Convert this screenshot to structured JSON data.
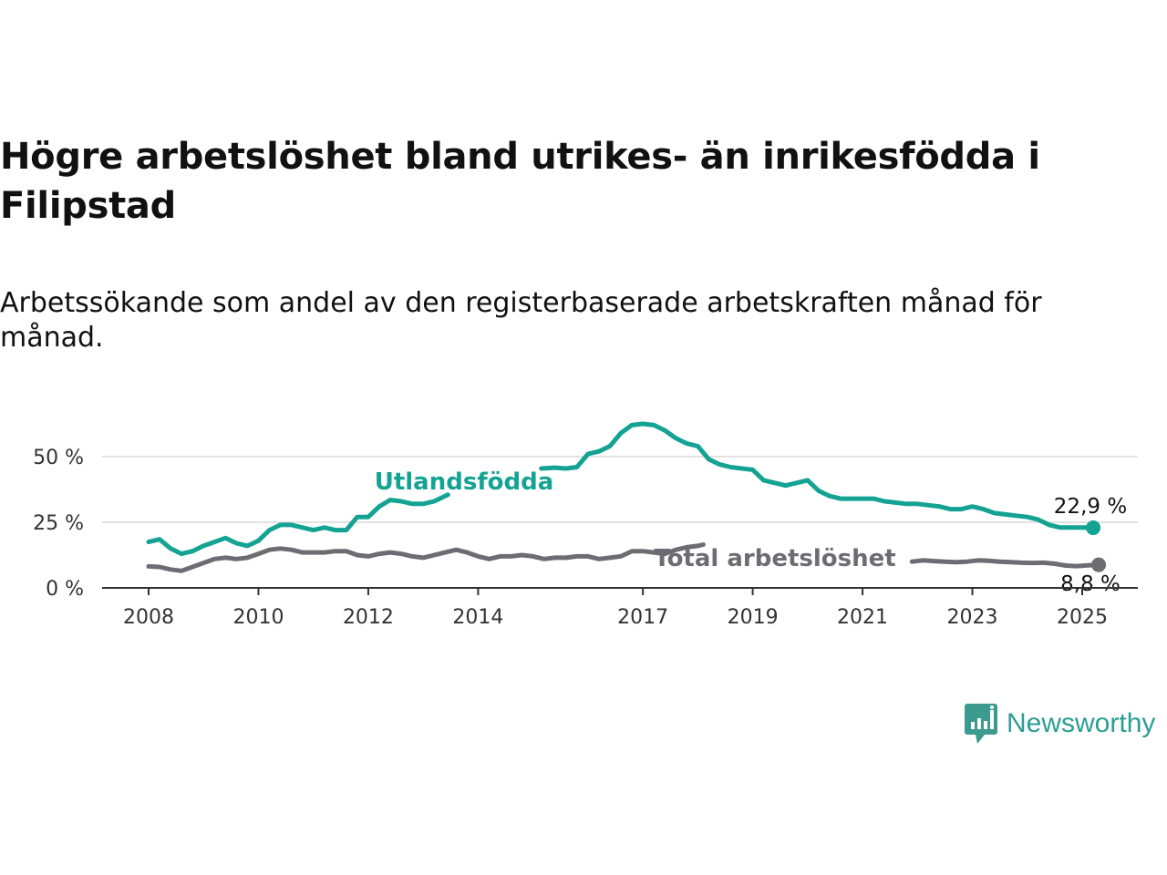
{
  "title": "Högre arbetslöshet bland utrikes- än inrikesfödda i Filipstad",
  "subtitle": "Arbetssökande som andel av den registerbaserade arbetskraften månad för månad.",
  "logo_text": "Newsworthy",
  "colors": {
    "foreign": "#14a393",
    "total": "#6f6b73",
    "grid": "#d9d9d9",
    "axis": "#333333"
  },
  "chart_data": {
    "type": "line",
    "title": "Högre arbetslöshet bland utrikes- än inrikesfödda i Filipstad",
    "subtitle": "Arbetssökande som andel av den registerbaserade arbetskraften månad för månad.",
    "xlabel": "",
    "ylabel": "",
    "ylim": [
      0,
      70
    ],
    "y_ticks": [
      0,
      25,
      50
    ],
    "y_tick_labels": [
      "0 %",
      "25 %",
      "50 %"
    ],
    "x_ticks": [
      2008,
      2010,
      2012,
      2014,
      2017,
      2019,
      2021,
      2023,
      2025
    ],
    "x_tick_labels": [
      "2008",
      "2010",
      "2012",
      "2014",
      "2017",
      "2019",
      "2021",
      "2023",
      "2025"
    ],
    "grid": true,
    "legend": "inline labels",
    "series": [
      {
        "name": "Utlandsfödda",
        "color": "#14a393",
        "end_label": "22,9 %",
        "segments": [
          [
            [
              2008.0,
              17.5
            ],
            [
              2008.2,
              18.5
            ],
            [
              2008.4,
              15
            ],
            [
              2008.6,
              13
            ],
            [
              2008.8,
              14
            ],
            [
              2009.0,
              16
            ],
            [
              2009.2,
              17.5
            ],
            [
              2009.4,
              19
            ],
            [
              2009.6,
              17
            ],
            [
              2009.8,
              16
            ],
            [
              2010.0,
              18
            ],
            [
              2010.2,
              22
            ],
            [
              2010.4,
              24
            ],
            [
              2010.6,
              24
            ],
            [
              2010.8,
              23
            ],
            [
              2011.0,
              22
            ],
            [
              2011.2,
              23
            ],
            [
              2011.4,
              22
            ],
            [
              2011.6,
              22
            ],
            [
              2011.8,
              27
            ],
            [
              2012.0,
              27
            ],
            [
              2012.2,
              31
            ],
            [
              2012.4,
              33.5
            ],
            [
              2012.6,
              33
            ],
            [
              2012.8,
              32
            ],
            [
              2013.0,
              32
            ],
            [
              2013.2,
              33
            ],
            [
              2013.45,
              35.5
            ]
          ],
          [
            [
              2015.15,
              45.5
            ],
            [
              2015.4,
              45.8
            ],
            [
              2015.6,
              45.5
            ],
            [
              2015.8,
              46
            ],
            [
              2016.0,
              51
            ],
            [
              2016.2,
              52
            ],
            [
              2016.4,
              54
            ],
            [
              2016.6,
              59
            ],
            [
              2016.8,
              62
            ],
            [
              2017.0,
              62.5
            ],
            [
              2017.2,
              62
            ],
            [
              2017.4,
              60
            ],
            [
              2017.6,
              57
            ],
            [
              2017.8,
              55
            ],
            [
              2018.0,
              54
            ],
            [
              2018.2,
              49
            ],
            [
              2018.4,
              47
            ],
            [
              2018.6,
              46
            ],
            [
              2018.8,
              45.5
            ],
            [
              2019.0,
              45
            ],
            [
              2019.2,
              41
            ],
            [
              2019.4,
              40
            ],
            [
              2019.6,
              39
            ],
            [
              2019.8,
              40
            ],
            [
              2020.0,
              41
            ],
            [
              2020.2,
              37
            ],
            [
              2020.4,
              35
            ],
            [
              2020.6,
              34
            ],
            [
              2020.8,
              34
            ],
            [
              2021.0,
              34
            ],
            [
              2021.2,
              34
            ],
            [
              2021.4,
              33
            ],
            [
              2021.6,
              32.5
            ],
            [
              2021.8,
              32
            ],
            [
              2022.0,
              32
            ],
            [
              2022.2,
              31.5
            ],
            [
              2022.4,
              31
            ],
            [
              2022.6,
              30
            ],
            [
              2022.8,
              30
            ],
            [
              2023.0,
              31
            ],
            [
              2023.2,
              30
            ],
            [
              2023.4,
              28.5
            ],
            [
              2023.6,
              28
            ],
            [
              2023.8,
              27.5
            ],
            [
              2024.0,
              27
            ],
            [
              2024.2,
              26
            ],
            [
              2024.4,
              24
            ],
            [
              2024.6,
              23
            ],
            [
              2024.8,
              23
            ],
            [
              2025.0,
              23
            ],
            [
              2025.2,
              22.9
            ]
          ]
        ]
      },
      {
        "name": "Total arbetslöshet",
        "color": "#6f6b73",
        "end_label": "8,8 %",
        "segments": [
          [
            [
              2008.0,
              8.2
            ],
            [
              2008.2,
              8
            ],
            [
              2008.4,
              7
            ],
            [
              2008.6,
              6.5
            ],
            [
              2008.8,
              8
            ],
            [
              2009.0,
              9.5
            ],
            [
              2009.2,
              11
            ],
            [
              2009.4,
              11.5
            ],
            [
              2009.6,
              11
            ],
            [
              2009.8,
              11.5
            ],
            [
              2010.0,
              13
            ],
            [
              2010.2,
              14.5
            ],
            [
              2010.4,
              15
            ],
            [
              2010.6,
              14.5
            ],
            [
              2010.8,
              13.5
            ],
            [
              2011.0,
              13.5
            ],
            [
              2011.2,
              13.5
            ],
            [
              2011.4,
              14
            ],
            [
              2011.6,
              14
            ],
            [
              2011.8,
              12.5
            ],
            [
              2012.0,
              12
            ],
            [
              2012.2,
              13
            ],
            [
              2012.4,
              13.5
            ],
            [
              2012.6,
              13
            ],
            [
              2012.8,
              12
            ],
            [
              2013.0,
              11.5
            ],
            [
              2013.2,
              12.5
            ],
            [
              2013.4,
              13.5
            ],
            [
              2013.6,
              14.5
            ],
            [
              2013.8,
              13.5
            ],
            [
              2014.0,
              12
            ],
            [
              2014.2,
              11
            ],
            [
              2014.4,
              12
            ],
            [
              2014.6,
              12
            ],
            [
              2014.8,
              12.5
            ],
            [
              2015.0,
              12
            ],
            [
              2015.2,
              11
            ],
            [
              2015.4,
              11.5
            ],
            [
              2015.6,
              11.5
            ],
            [
              2015.8,
              12
            ],
            [
              2016.0,
              12
            ],
            [
              2016.2,
              11
            ],
            [
              2016.4,
              11.5
            ],
            [
              2016.6,
              12
            ],
            [
              2016.8,
              14
            ],
            [
              2017.0,
              14
            ],
            [
              2017.2,
              13.5
            ],
            [
              2017.4,
              13
            ],
            [
              2017.6,
              14.5
            ],
            [
              2017.8,
              15.5
            ],
            [
              2018.0,
              16
            ],
            [
              2018.1,
              16.5
            ]
          ],
          [
            [
              2021.9,
              10
            ],
            [
              2022.1,
              10.5
            ],
            [
              2022.3,
              10.2
            ],
            [
              2022.5,
              10
            ],
            [
              2022.7,
              9.8
            ],
            [
              2022.9,
              10
            ],
            [
              2023.1,
              10.5
            ],
            [
              2023.3,
              10.3
            ],
            [
              2023.5,
              10
            ],
            [
              2023.7,
              9.8
            ],
            [
              2023.9,
              9.6
            ],
            [
              2024.1,
              9.5
            ],
            [
              2024.3,
              9.6
            ],
            [
              2024.5,
              9.2
            ],
            [
              2024.7,
              8.5
            ],
            [
              2024.9,
              8.3
            ],
            [
              2025.1,
              8.6
            ],
            [
              2025.3,
              8.8
            ]
          ]
        ]
      }
    ]
  }
}
